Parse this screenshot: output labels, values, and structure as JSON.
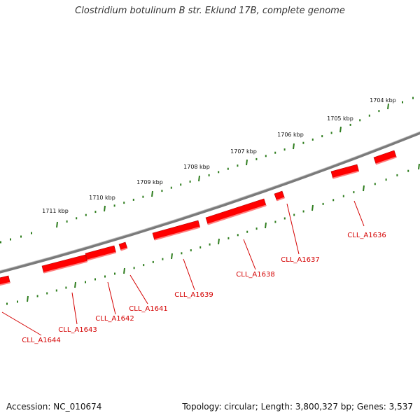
{
  "title": "Clostridium botulinum B str. Eklund 17B, complete genome",
  "accession": "Accession: NC_010674",
  "summary": "Topology: circular; Length: 3,800,327 bp; Genes: 3,537",
  "colors": {
    "backbone": "#7a7a7a",
    "tick": "#2e7d1e",
    "gene": "#ff0000",
    "gene_label": "#d40000"
  },
  "kbp_labels": [
    "1704 kbp",
    "1705 kbp",
    "1706 kbp",
    "1707 kbp",
    "1708 kbp",
    "1709 kbp",
    "1710 kbp",
    "1711 kbp"
  ],
  "genes": [
    "CLL_A1636",
    "CLL_A1637",
    "CLL_A1638",
    "CLL_A1639",
    "CLL_A1641",
    "CLL_A1642",
    "CLL_A1643",
    "CLL_A1644"
  ]
}
